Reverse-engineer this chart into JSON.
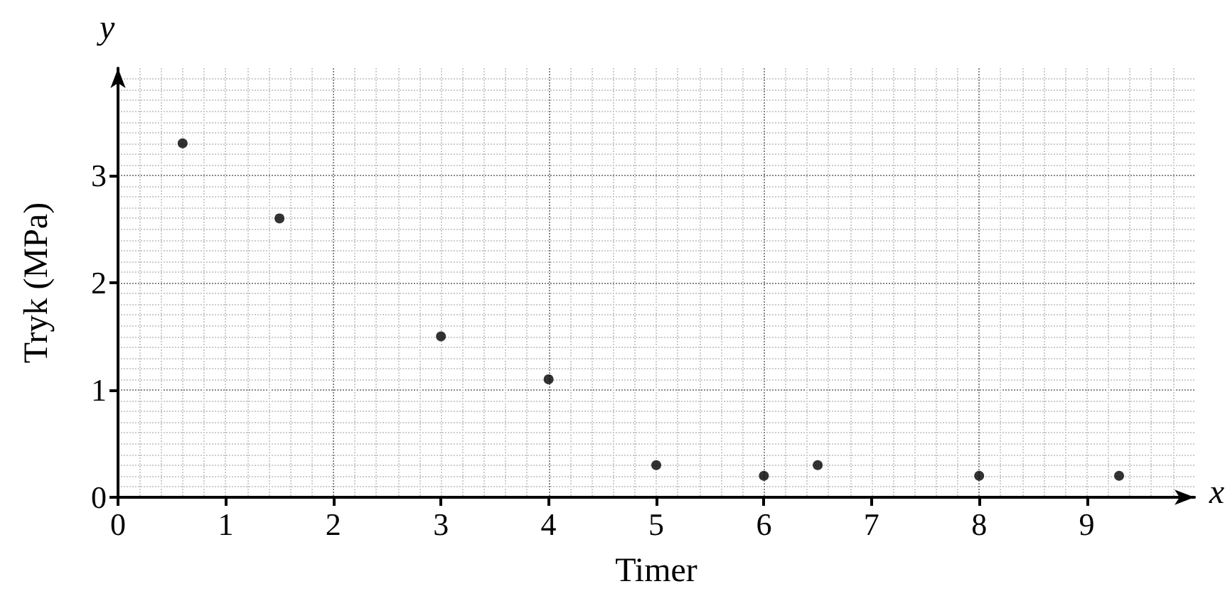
{
  "chart_data": {
    "type": "scatter",
    "xlabel": "Timer",
    "ylabel": "Tryk (MPa)",
    "annotations": [
      "x",
      "y"
    ],
    "x": [
      0.6,
      1.5,
      3,
      4,
      5,
      6,
      6.5,
      8,
      9.3
    ],
    "values": [
      3.3,
      2.6,
      1.5,
      1.1,
      0.3,
      0.2,
      0.3,
      0.2,
      0.2
    ],
    "color": "#000000",
    "marker": "circle",
    "xlim": [
      0,
      10
    ],
    "xticks": [
      0,
      1,
      2,
      3,
      4,
      5,
      6,
      7,
      8,
      9
    ],
    "ylim": [
      0,
      4
    ],
    "yticks": [
      0,
      1,
      2,
      3
    ],
    "grid": true
  }
}
